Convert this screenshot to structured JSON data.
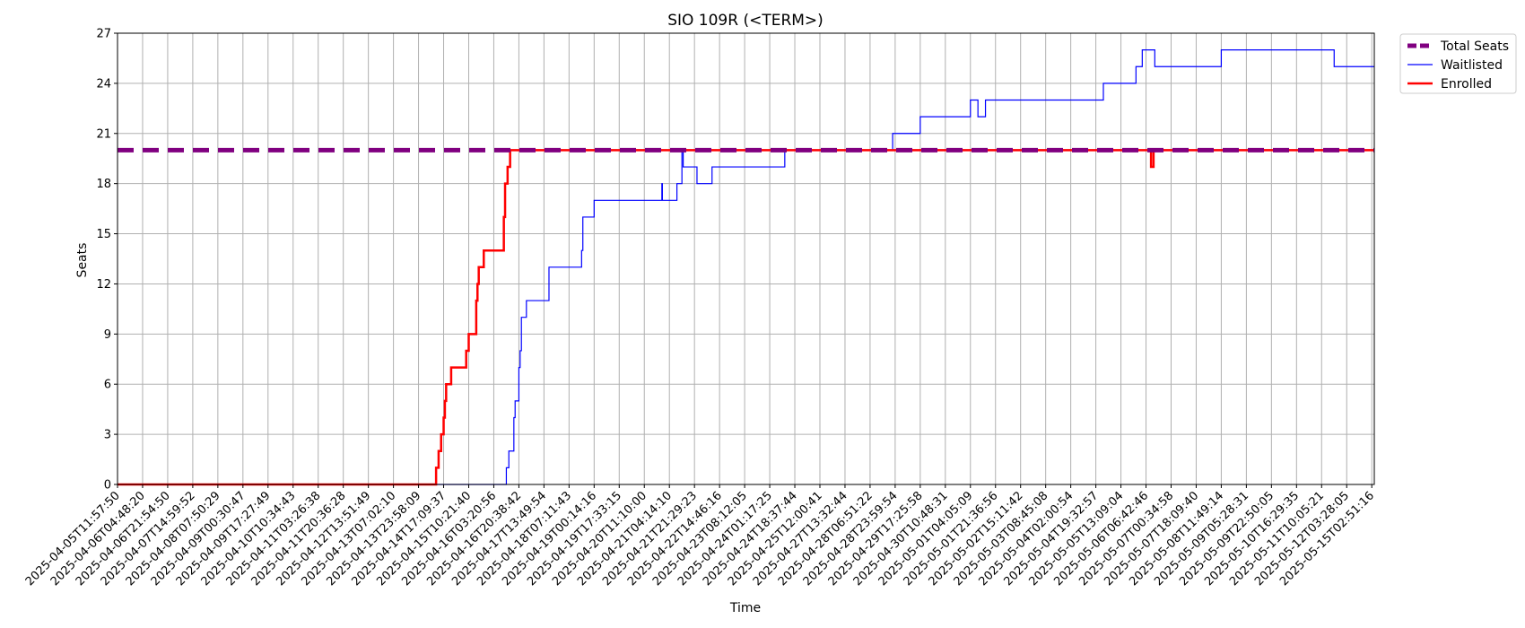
{
  "chart_data": {
    "type": "line",
    "title": "SIO 109R (<TERM>)",
    "xlabel": "Time",
    "ylabel": "Seats",
    "ylim": [
      0,
      27
    ],
    "y_ticks": [
      0,
      3,
      6,
      9,
      12,
      15,
      18,
      21,
      24,
      27
    ],
    "grid": true,
    "legend_position": "outside-top-right",
    "x_tick_labels": [
      "2025-04-05T11:57:50",
      "2025-04-06T04:48:20",
      "2025-04-06T21:54:50",
      "2025-04-07T14:59:52",
      "2025-04-08T07:50:29",
      "2025-04-09T00:30:47",
      "2025-04-09T17:27:49",
      "2025-04-10T10:34:43",
      "2025-04-11T03:26:38",
      "2025-04-11T20:36:28",
      "2025-04-12T13:51:49",
      "2025-04-13T07:02:10",
      "2025-04-13T23:58:09",
      "2025-04-14T17:09:37",
      "2025-04-15T10:21:40",
      "2025-04-16T03:20:56",
      "2025-04-16T20:38:42",
      "2025-04-17T13:49:54",
      "2025-04-18T07:11:43",
      "2025-04-19T00:14:16",
      "2025-04-19T17:33:15",
      "2025-04-20T11:10:00",
      "2025-04-21T04:14:10",
      "2025-04-21T21:29:23",
      "2025-04-22T14:46:16",
      "2025-04-23T08:12:05",
      "2025-04-24T01:17:25",
      "2025-04-24T18:37:44",
      "2025-04-25T12:00:41",
      "2025-04-27T13:32:44",
      "2025-04-28T06:51:22",
      "2025-04-28T23:59:54",
      "2025-04-29T17:25:58",
      "2025-04-30T10:48:31",
      "2025-05-01T04:05:09",
      "2025-05-01T21:36:56",
      "2025-05-02T15:11:42",
      "2025-05-03T08:45:08",
      "2025-05-04T02:00:54",
      "2025-05-04T19:32:57",
      "2025-05-05T13:09:04",
      "2025-05-06T06:42:46",
      "2025-05-07T00:34:58",
      "2025-05-07T18:09:40",
      "2025-05-08T11:49:14",
      "2025-05-09T05:28:31",
      "2025-05-09T22:50:05",
      "2025-05-10T16:29:35",
      "2025-05-11T10:05:21",
      "2025-05-12T03:28:05",
      "2025-05-15T02:51:16"
    ],
    "x_range": [
      0,
      50.1
    ],
    "series": [
      {
        "name": "Total Seats",
        "color": "#800080",
        "style": "dashed",
        "points": [
          [
            0,
            20
          ],
          [
            50.1,
            20
          ]
        ]
      },
      {
        "name": "Waitlisted",
        "color": "#0000ff",
        "style": "step",
        "points": [
          [
            0,
            0
          ],
          [
            14,
            0
          ],
          [
            15.5,
            0
          ],
          [
            15.5,
            1
          ],
          [
            15.6,
            1
          ],
          [
            15.6,
            2
          ],
          [
            15.8,
            2
          ],
          [
            15.8,
            4
          ],
          [
            15.85,
            4
          ],
          [
            15.85,
            5
          ],
          [
            16,
            5
          ],
          [
            16,
            7
          ],
          [
            16.05,
            7
          ],
          [
            16.05,
            8
          ],
          [
            16.1,
            8
          ],
          [
            16.1,
            10
          ],
          [
            16.3,
            10
          ],
          [
            16.3,
            11
          ],
          [
            17.2,
            11
          ],
          [
            17.2,
            13
          ],
          [
            18.5,
            13
          ],
          [
            18.5,
            14
          ],
          [
            18.55,
            14
          ],
          [
            18.55,
            16
          ],
          [
            19.0,
            16
          ],
          [
            19.0,
            17
          ],
          [
            21.7,
            17
          ],
          [
            21.7,
            18
          ],
          [
            21.72,
            18
          ],
          [
            21.72,
            17
          ],
          [
            22.3,
            17
          ],
          [
            22.3,
            18
          ],
          [
            22.5,
            18
          ],
          [
            22.5,
            20
          ],
          [
            22.55,
            20
          ],
          [
            22.55,
            19
          ],
          [
            23.1,
            19
          ],
          [
            23.1,
            18
          ],
          [
            23.7,
            18
          ],
          [
            23.7,
            19
          ],
          [
            26.6,
            19
          ],
          [
            26.6,
            20
          ],
          [
            30.9,
            20
          ],
          [
            30.9,
            21
          ],
          [
            32.0,
            21
          ],
          [
            32.0,
            22
          ],
          [
            34.0,
            22
          ],
          [
            34.0,
            23
          ],
          [
            34.3,
            23
          ],
          [
            34.3,
            22
          ],
          [
            34.6,
            22
          ],
          [
            34.6,
            23
          ],
          [
            39.3,
            23
          ],
          [
            39.3,
            24
          ],
          [
            40.6,
            24
          ],
          [
            40.6,
            25
          ],
          [
            40.85,
            25
          ],
          [
            40.85,
            26
          ],
          [
            41.35,
            26
          ],
          [
            41.35,
            25
          ],
          [
            44.0,
            25
          ],
          [
            44.0,
            26
          ],
          [
            48.5,
            26
          ],
          [
            48.5,
            25
          ],
          [
            50.1,
            25
          ]
        ]
      },
      {
        "name": "Enrolled",
        "color": "#ff0000",
        "style": "step",
        "points": [
          [
            0,
            0
          ],
          [
            12.7,
            0
          ],
          [
            12.7,
            1
          ],
          [
            12.8,
            1
          ],
          [
            12.8,
            2
          ],
          [
            12.9,
            2
          ],
          [
            12.9,
            3
          ],
          [
            13.0,
            3
          ],
          [
            13.0,
            4
          ],
          [
            13.05,
            4
          ],
          [
            13.05,
            5
          ],
          [
            13.1,
            5
          ],
          [
            13.1,
            6
          ],
          [
            13.3,
            6
          ],
          [
            13.3,
            7
          ],
          [
            13.9,
            7
          ],
          [
            13.9,
            8
          ],
          [
            14.0,
            8
          ],
          [
            14.0,
            9
          ],
          [
            14.3,
            9
          ],
          [
            14.3,
            11
          ],
          [
            14.35,
            11
          ],
          [
            14.35,
            12
          ],
          [
            14.4,
            12
          ],
          [
            14.4,
            13
          ],
          [
            14.6,
            13
          ],
          [
            14.6,
            14
          ],
          [
            15.4,
            14
          ],
          [
            15.4,
            16
          ],
          [
            15.45,
            16
          ],
          [
            15.45,
            18
          ],
          [
            15.55,
            18
          ],
          [
            15.55,
            19
          ],
          [
            15.65,
            19
          ],
          [
            15.65,
            20
          ],
          [
            41.2,
            20
          ],
          [
            41.2,
            19
          ],
          [
            41.3,
            19
          ],
          [
            41.3,
            20
          ],
          [
            50.1,
            20
          ]
        ]
      }
    ]
  }
}
